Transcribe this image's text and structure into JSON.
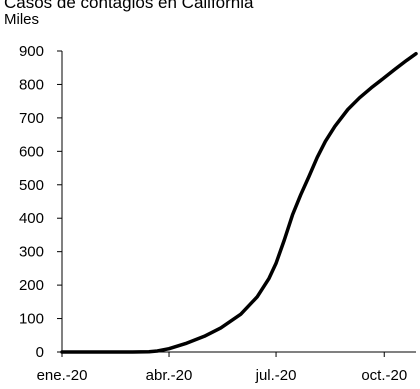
{
  "chart_data": {
    "type": "line",
    "title": "Casos de contagios en California",
    "units_label": "Miles",
    "xlabel": "",
    "ylabel": "",
    "ylim": [
      0,
      900
    ],
    "yticks": [
      0,
      100,
      200,
      300,
      400,
      500,
      600,
      700,
      800,
      900
    ],
    "xlim": [
      "2020-01-01",
      "2020-10-28"
    ],
    "xticks": [
      {
        "date": "2020-01-01",
        "label": "ene.-20"
      },
      {
        "date": "2020-04-01",
        "label": "abr.-20"
      },
      {
        "date": "2020-07-01",
        "label": "jul.-20"
      },
      {
        "date": "2020-10-01",
        "label": "oct.-20"
      }
    ],
    "grid": false,
    "series": [
      {
        "color": "#000000",
        "points": [
          [
            "2020-01-01",
            0
          ],
          [
            "2020-02-01",
            0
          ],
          [
            "2020-03-01",
            0
          ],
          [
            "2020-03-15",
            1
          ],
          [
            "2020-03-22",
            3
          ],
          [
            "2020-04-01",
            10
          ],
          [
            "2020-04-15",
            25
          ],
          [
            "2020-05-01",
            47
          ],
          [
            "2020-05-15",
            72
          ],
          [
            "2020-06-01",
            113
          ],
          [
            "2020-06-15",
            165
          ],
          [
            "2020-06-25",
            220
          ],
          [
            "2020-07-01",
            265
          ],
          [
            "2020-07-08",
            335
          ],
          [
            "2020-07-15",
            410
          ],
          [
            "2020-07-22",
            470
          ],
          [
            "2020-07-29",
            525
          ],
          [
            "2020-08-05",
            582
          ],
          [
            "2020-08-12",
            630
          ],
          [
            "2020-08-20",
            675
          ],
          [
            "2020-08-31",
            725
          ],
          [
            "2020-09-10",
            760
          ],
          [
            "2020-09-20",
            790
          ],
          [
            "2020-10-01",
            820
          ],
          [
            "2020-10-10",
            845
          ],
          [
            "2020-10-20",
            872
          ],
          [
            "2020-10-28",
            892
          ]
        ]
      }
    ]
  }
}
